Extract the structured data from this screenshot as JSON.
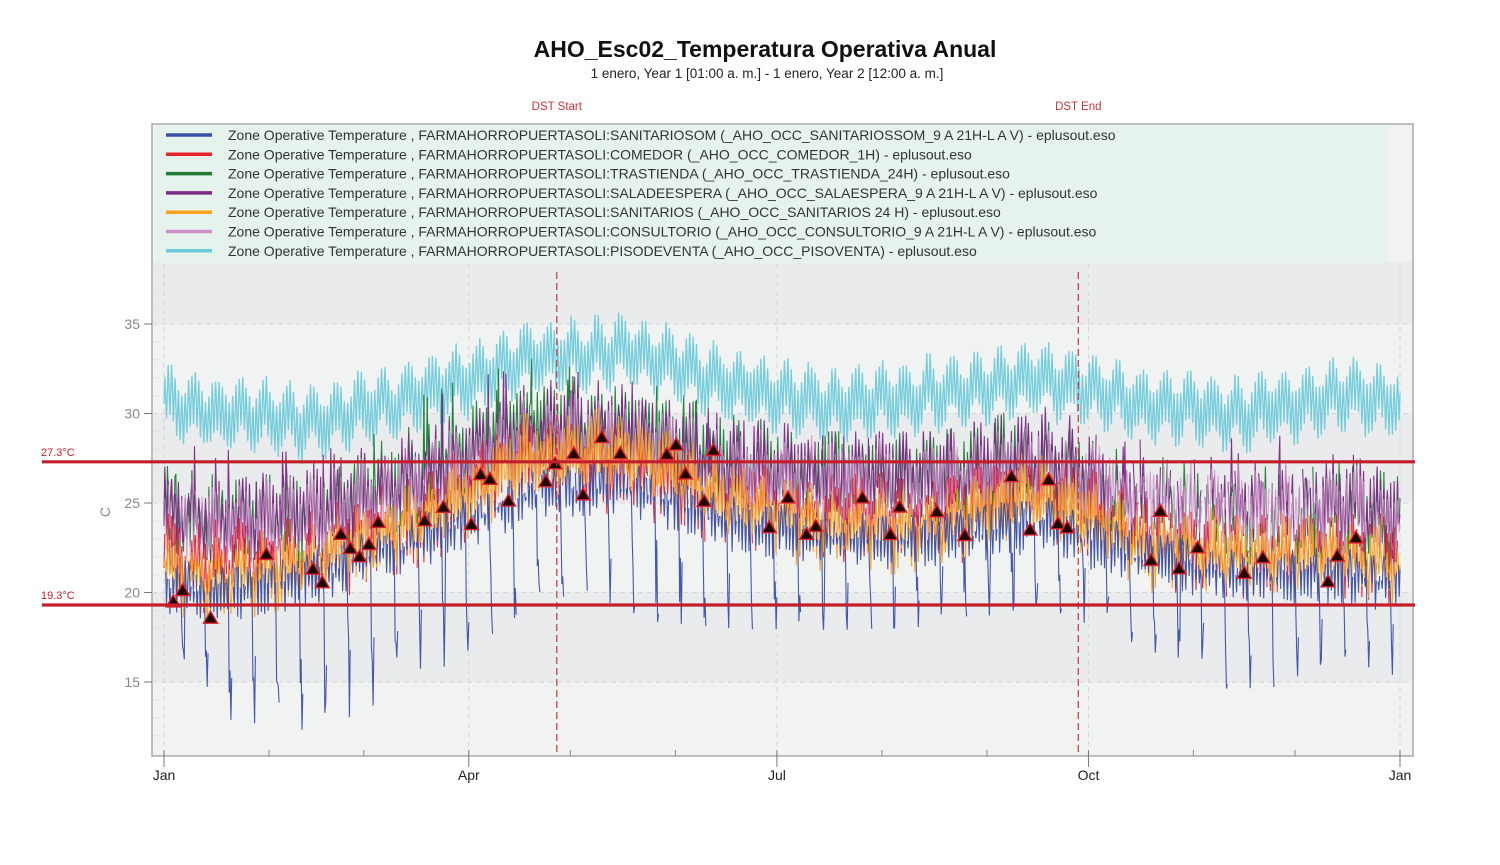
{
  "chart_data": {
    "type": "line",
    "title": "AHO_Esc02_Temperatura Operativa Anual",
    "subtitle": "1 enero, Year 1 [01:00 a. m.] - 1 enero, Year 2 [12:00 a. m.]",
    "xlabel": "",
    "ylabel": "C",
    "xlim_days": [
      0,
      365
    ],
    "ylim": [
      11,
      38
    ],
    "y_ticks": [
      15,
      20,
      25,
      30,
      35
    ],
    "x_ticks": [
      {
        "label": "Jan",
        "day": 0
      },
      {
        "label": "Apr",
        "day": 90
      },
      {
        "label": "Jul",
        "day": 181
      },
      {
        "label": "Oct",
        "day": 273
      },
      {
        "label": "Jan",
        "day": 365
      }
    ],
    "x_minor_tick_days": [
      31,
      59,
      120,
      151,
      212,
      243,
      304,
      334
    ],
    "grid": true,
    "legend_position": "top",
    "annotations": [
      {
        "type": "vline",
        "label": "DST Start",
        "day": 116,
        "color": "#c8333b"
      },
      {
        "type": "vline",
        "label": "DST End",
        "day": 270,
        "color": "#c8333b"
      },
      {
        "type": "hline",
        "label": "27.3°C",
        "y": 27.3,
        "color": "#c41e2a"
      },
      {
        "type": "hline",
        "label": "19.3°C",
        "y": 19.3,
        "color": "#c41e2a"
      }
    ],
    "series": [
      {
        "name": "Zone Operative Temperature , FARMAHORROPUERTASOLI:SANITARIOSOM (_AHO_OCC_SANITARIOSSOM_9 A 21H-L A V) - eplusout.eso",
        "color": "#3a4fa8",
        "monthly_mean": [
          20.5,
          21.5,
          23.5,
          26.0,
          26.5,
          24.5,
          23.5,
          23.5,
          24.5,
          22.5,
          21.5,
          21.5
        ],
        "monthly_min": [
          13.0,
          12.2,
          15.0,
          18.9,
          18.5,
          18.0,
          17.9,
          18.1,
          19.3,
          17.0,
          14.1,
          16.5
        ]
      },
      {
        "name": "Zone Operative Temperature , FARMAHORROPUERTASOLI:COMEDOR (_AHO_OCC_COMEDOR_1H) - eplusout.eso",
        "color": "#e8232b",
        "monthly_mean": [
          21.5,
          22.0,
          24.0,
          27.5,
          27.0,
          25.0,
          24.0,
          24.0,
          25.5,
          23.0,
          22.0,
          22.0
        ]
      },
      {
        "name": "Zone Operative Temperature , FARMAHORROPUERTASOLI:TRASTIENDA (_AHO_OCC_TRASTIENDA_24H) - eplusout.eso",
        "color": "#1e7c34",
        "monthly_mean": [
          24.0,
          24.5,
          26.5,
          29.5,
          29.0,
          27.0,
          26.5,
          26.5,
          27.5,
          25.0,
          24.5,
          24.5
        ],
        "monthly_max": [
          26.7,
          26.5,
          31.0,
          33.5,
          32.5,
          30.0,
          29.0,
          29.0,
          31.0,
          28.0,
          27.0,
          27.5
        ]
      },
      {
        "name": "Zone Operative Temperature , FARMAHORROPUERTASOLI:SALADEESPERA (_AHO_OCC_SALAESPERA_9 A 21H-L A V) - eplusout.eso",
        "color": "#7b2a85",
        "monthly_mean": [
          24.0,
          24.5,
          26.5,
          29.0,
          29.0,
          27.0,
          26.5,
          26.5,
          27.5,
          25.5,
          25.0,
          25.0
        ],
        "monthly_max": [
          28.0,
          28.0,
          31.0,
          33.0,
          32.0,
          30.0,
          29.0,
          29.0,
          30.5,
          28.5,
          29.0,
          29.5
        ]
      },
      {
        "name": "Zone Operative Temperature , FARMAHORROPUERTASOLI:SANITARIOS (_AHO_OCC_SANITARIOS 24 H) - eplusout.eso",
        "color": "#f7a321",
        "monthly_mean": [
          20.5,
          21.5,
          24.0,
          27.5,
          28.0,
          25.0,
          23.5,
          23.5,
          25.5,
          22.5,
          22.0,
          22.0
        ],
        "monthly_min": [
          15.8,
          15.5,
          18.0,
          20.5,
          20.0,
          19.5,
          19.0,
          19.5,
          21.0,
          18.7,
          18.0,
          18.5
        ]
      },
      {
        "name": "Zone Operative Temperature , FARMAHORROPUERTASOLI:CONSULTORIO (_AHO_OCC_CONSULTORIO_9 A 21H-L A V) - eplusout.eso",
        "color": "#cf8fc8",
        "monthly_mean": [
          23.5,
          24.0,
          26.0,
          28.5,
          28.5,
          26.5,
          26.0,
          26.0,
          27.0,
          25.0,
          24.5,
          24.5
        ]
      },
      {
        "name": "Zone Operative Temperature , FARMAHORROPUERTASOLI:PISODEVENTA (_AHO_OCC_PISOVENTA) - eplusout.eso",
        "color": "#6ccadb",
        "monthly_mean": [
          30.0,
          29.5,
          31.0,
          33.0,
          33.5,
          31.5,
          30.5,
          31.0,
          32.0,
          30.5,
          30.0,
          31.0
        ],
        "monthly_max": [
          32.6,
          32.0,
          34.5,
          36.6,
          36.0,
          34.0,
          33.5,
          33.5,
          34.6,
          32.5,
          33.0,
          34.2
        ],
        "monthly_min": [
          28.5,
          25.5,
          28.0,
          30.5,
          29.0,
          28.5,
          28.0,
          28.5,
          29.0,
          28.5,
          26.0,
          27.0
        ]
      }
    ],
    "markers": {
      "shape": "triangle",
      "fill": "#1a0a00",
      "stroke": "#e0202a",
      "on_series": "SANITARIOS"
    }
  }
}
